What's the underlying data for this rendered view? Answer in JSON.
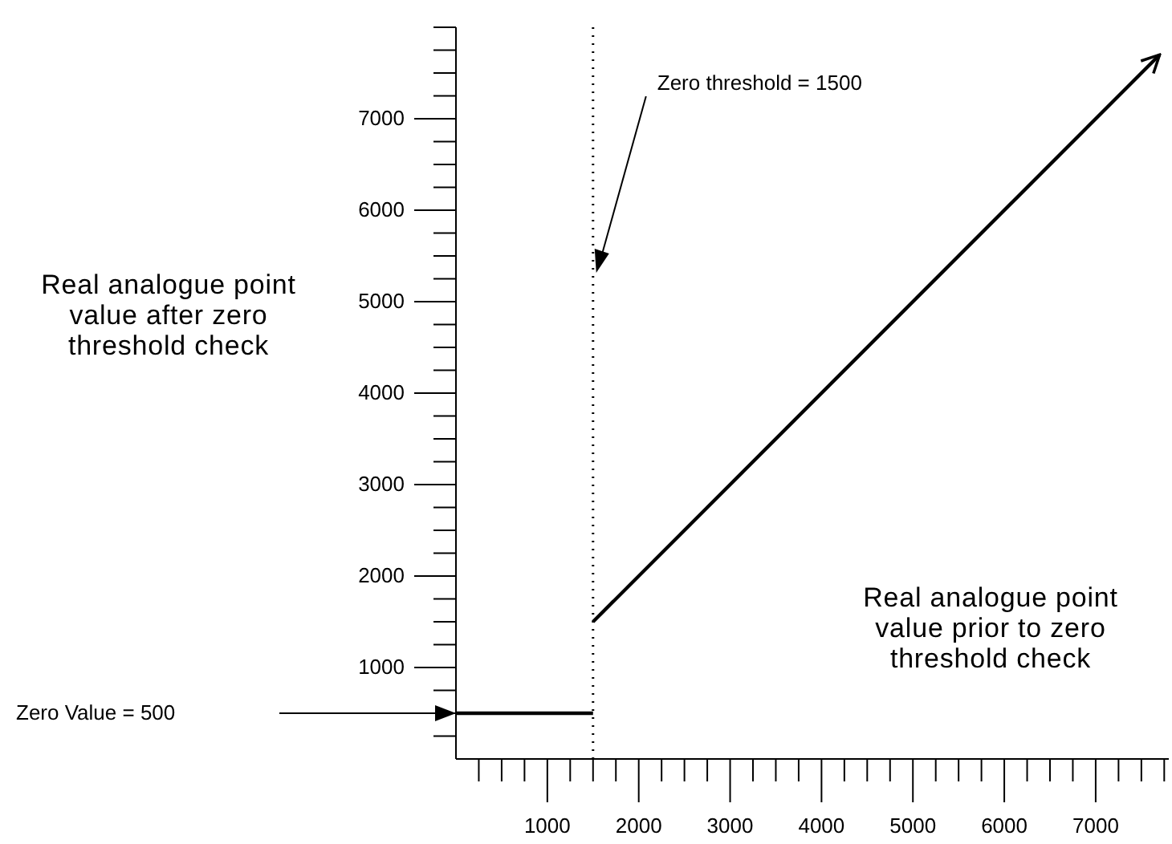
{
  "chart_data": {
    "type": "line",
    "xlabel": "Real analogue point value prior to zero threshold check",
    "ylabel": "Real analogue point value after zero threshold check",
    "xlim": [
      0,
      7800
    ],
    "ylim": [
      0,
      8000
    ],
    "xticks": [
      {
        "value": 250,
        "label": null
      },
      {
        "value": 500,
        "label": null
      },
      {
        "value": 750,
        "label": null
      },
      1000,
      {
        "value": 1250,
        "label": null
      },
      {
        "value": 1500,
        "label": null
      },
      {
        "value": 1750,
        "label": null
      },
      2000,
      {
        "value": 2250,
        "label": null
      },
      {
        "value": 2500,
        "label": null
      },
      {
        "value": 2750,
        "label": null
      },
      3000,
      {
        "value": 3250,
        "label": null
      },
      {
        "value": 3500,
        "label": null
      },
      {
        "value": 3750,
        "label": null
      },
      4000,
      {
        "value": 4250,
        "label": null
      },
      {
        "value": 4500,
        "label": null
      },
      {
        "value": 4750,
        "label": null
      },
      5000,
      {
        "value": 5250,
        "label": null
      },
      {
        "value": 5500,
        "label": null
      },
      {
        "value": 5750,
        "label": null
      },
      6000,
      {
        "value": 6250,
        "label": null
      },
      {
        "value": 6500,
        "label": null
      },
      {
        "value": 6750,
        "label": null
      },
      7000,
      {
        "value": 7250,
        "label": null
      },
      {
        "value": 7500,
        "label": null
      },
      {
        "value": 7750,
        "label": null
      }
    ],
    "yticks": [
      {
        "value": 250,
        "label": null
      },
      {
        "value": 500,
        "label": null
      },
      {
        "value": 750,
        "label": null
      },
      1000,
      {
        "value": 1250,
        "label": null
      },
      {
        "value": 1500,
        "label": null
      },
      {
        "value": 1750,
        "label": null
      },
      2000,
      {
        "value": 2250,
        "label": null
      },
      {
        "value": 2500,
        "label": null
      },
      {
        "value": 2750,
        "label": null
      },
      3000,
      {
        "value": 3250,
        "label": null
      },
      {
        "value": 3500,
        "label": null
      },
      {
        "value": 3750,
        "label": null
      },
      4000,
      {
        "value": 4250,
        "label": null
      },
      {
        "value": 4500,
        "label": null
      },
      {
        "value": 4750,
        "label": null
      },
      5000,
      {
        "value": 5250,
        "label": null
      },
      {
        "value": 5500,
        "label": null
      },
      {
        "value": 5750,
        "label": null
      },
      6000,
      {
        "value": 6250,
        "label": null
      },
      {
        "value": 6500,
        "label": null
      },
      {
        "value": 6750,
        "label": null
      },
      7000,
      {
        "value": 7250,
        "label": null
      },
      {
        "value": 7500,
        "label": null
      },
      {
        "value": 7750,
        "label": null
      },
      {
        "value": 8000,
        "label": null
      }
    ],
    "series": [
      {
        "color": "#000000",
        "x": [
          0,
          1500
        ],
        "values": [
          500,
          500
        ]
      },
      {
        "color": "#000000",
        "x": [
          1500,
          7700
        ],
        "values": [
          1500,
          7700
        ]
      }
    ],
    "ref_lines": [
      {
        "axis": "x",
        "value": 1500,
        "label": "Zero threshold = 1500",
        "line_style": "dotted",
        "color": "#000000"
      }
    ],
    "annotations": [
      "Zero Value = 500"
    ],
    "grid": false,
    "marker": "none",
    "line_style": "solid"
  }
}
